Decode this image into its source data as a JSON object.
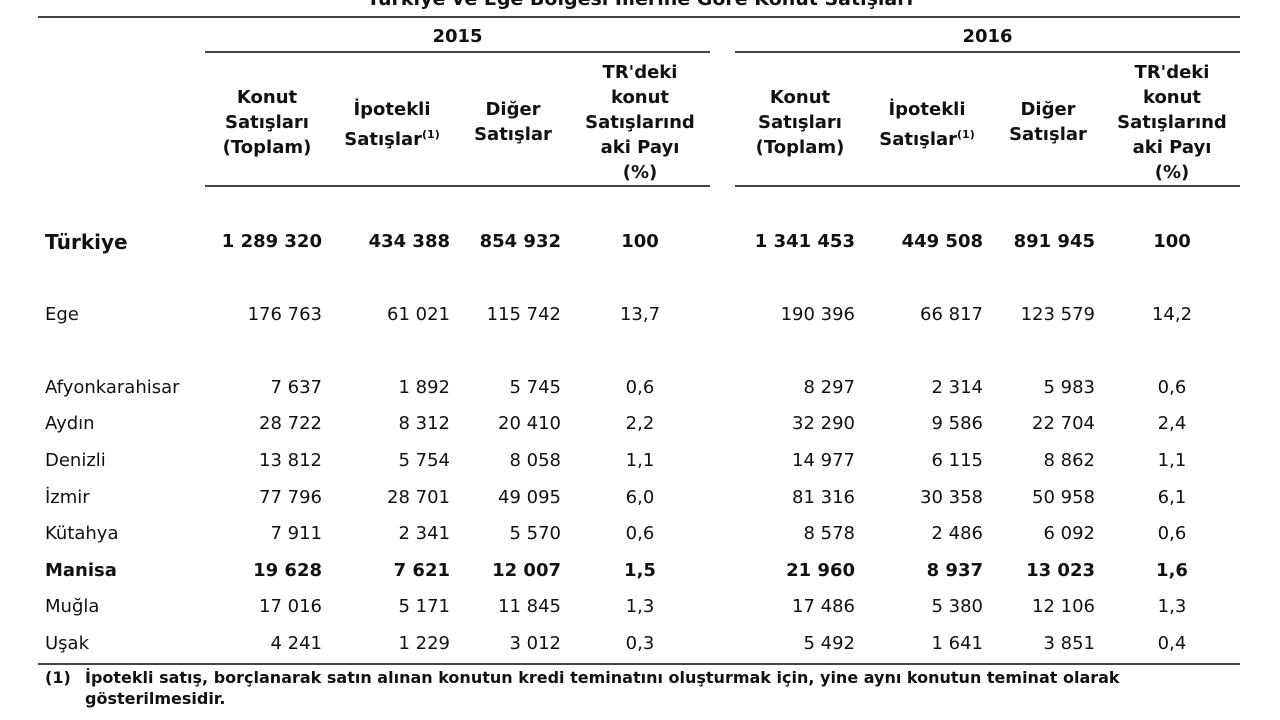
{
  "header": {
    "title": "Türkiye ve Ege Bölgesi İllerine Göre Konut Satışları"
  },
  "table": {
    "groups": [
      {
        "year": "2015",
        "columns": [
          {
            "lines": [
              "Konut",
              "Satışları",
              "(Toplam)"
            ]
          },
          {
            "lines": [
              "İpotekli",
              "Satışlar"
            ],
            "note": "(1)"
          },
          {
            "lines": [
              "Diğer",
              "Satışlar"
            ]
          },
          {
            "lines": [
              "TR'deki",
              "konut",
              "Satışlarınd",
              "aki Payı",
              "(%)"
            ]
          }
        ]
      },
      {
        "year": "2016",
        "columns": [
          {
            "lines": [
              "Konut",
              "Satışları",
              "(Toplam)"
            ]
          },
          {
            "lines": [
              "İpotekli",
              "Satışlar"
            ],
            "note": "(1)"
          },
          {
            "lines": [
              "Diğer",
              "Satışlar"
            ]
          },
          {
            "lines": [
              "TR'deki",
              "konut",
              "Satışlarınd",
              "aki Payı",
              "(%)"
            ]
          }
        ]
      }
    ],
    "rows": [
      {
        "name": "Türkiye",
        "bold": true,
        "cells": [
          "1 289 320",
          "434 388",
          "854 932",
          "100",
          "1 341 453",
          "449 508",
          "891 945",
          "100"
        ]
      },
      {
        "name": "Ege",
        "bold": false,
        "cells": [
          "176 763",
          "61 021",
          "115 742",
          "13,7",
          "190 396",
          "66 817",
          "123 579",
          "14,2"
        ]
      },
      {
        "name": "Afyonkarahisar",
        "bold": false,
        "cells": [
          "7 637",
          "1 892",
          "5 745",
          "0,6",
          "8 297",
          "2 314",
          "5 983",
          "0,6"
        ]
      },
      {
        "name": "Aydın",
        "bold": false,
        "cells": [
          "28 722",
          "8 312",
          "20 410",
          "2,2",
          "32 290",
          "9 586",
          "22 704",
          "2,4"
        ]
      },
      {
        "name": "Denizli",
        "bold": false,
        "cells": [
          "13 812",
          "5 754",
          "8 058",
          "1,1",
          "14 977",
          "6 115",
          "8 862",
          "1,1"
        ]
      },
      {
        "name": "İzmir",
        "bold": false,
        "cells": [
          "77 796",
          "28 701",
          "49 095",
          "6,0",
          "81 316",
          "30 358",
          "50 958",
          "6,1"
        ]
      },
      {
        "name": "Kütahya",
        "bold": false,
        "cells": [
          "7 911",
          "2 341",
          "5 570",
          "0,6",
          "8 578",
          "2 486",
          "6 092",
          "0,6"
        ]
      },
      {
        "name": "Manisa",
        "bold": true,
        "cells": [
          "19 628",
          "7 621",
          "12 007",
          "1,5",
          "21 960",
          "8 937",
          "13 023",
          "1,6"
        ]
      },
      {
        "name": "Muğla",
        "bold": false,
        "cells": [
          "17 016",
          "5 171",
          "11 845",
          "1,3",
          "17 486",
          "5 380",
          "12 106",
          "1,3"
        ]
      },
      {
        "name": "Uşak",
        "bold": false,
        "cells": [
          "4 241",
          "1 229",
          "3 012",
          "0,3",
          "5 492",
          "1 641",
          "3 851",
          "0,4"
        ]
      }
    ]
  },
  "footnote": {
    "marker": "(1)",
    "text": "İpotekli satış, borçlanarak satın alınan konutun kredi teminatını oluşturmak için, yine aynı konutun teminat olarak gösterilmesidir."
  }
}
